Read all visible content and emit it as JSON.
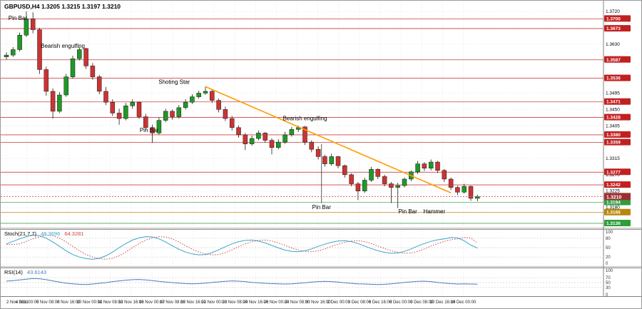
{
  "main_chart": {
    "ohlc_label": "GBPUSD,H4 1.3205 1.3215 1.3197 1.3210"
  },
  "chart_data": [
    {
      "type": "candlestick",
      "title": "GBPUSD,H4",
      "ylim": [
        1.313,
        1.3742
      ],
      "up_color": "#1f9927",
      "down_color": "#cc3333",
      "price_ticks": [
        "1.3720",
        "1.3675",
        "1.3630",
        "1.3585",
        "1.3540",
        "1.3495",
        "1.3450",
        "1.3405",
        "1.3360",
        "1.3315",
        "1.3270",
        "1.3225",
        "1.3180",
        "1.3135"
      ],
      "x_labels": [
        "2 Nov 2021",
        "4 Nov 00:00",
        "5 Nov 08:00",
        "8 Nov 16:00",
        "10 Nov 00:00",
        "11 Nov 08:00",
        "12 Nov 16:00",
        "16 Nov 00:00",
        "17 Nov 08:00",
        "18 Nov 16:00",
        "22 Nov 00:00",
        "23 Nov 08:00",
        "24 Nov 16:00",
        "26 Nov 00:00",
        "29 Nov 08:00",
        "30 Nov 16:00",
        "2 Dec 00:00",
        "3 Dec 08:00",
        "6 Dec 16:00",
        "8 Dec 00:00",
        "9 Dec 08:00",
        "10 Dec 16:00",
        "14 Dec 00:00"
      ],
      "ohlc": [
        [
          1.3595,
          1.3608,
          1.3588,
          1.36
        ],
        [
          1.36,
          1.3622,
          1.3595,
          1.3615
        ],
        [
          1.3615,
          1.3662,
          1.361,
          1.3655
        ],
        [
          1.3655,
          1.372,
          1.365,
          1.37
        ],
        [
          1.37,
          1.3718,
          1.366,
          1.367
        ],
        [
          1.367,
          1.3675,
          1.3548,
          1.356
        ],
        [
          1.356,
          1.3568,
          1.3488,
          1.35
        ],
        [
          1.35,
          1.3508,
          1.3425,
          1.3445
        ],
        [
          1.3445,
          1.3498,
          1.344,
          1.349
        ],
        [
          1.349,
          1.3548,
          1.3485,
          1.354
        ],
        [
          1.354,
          1.3598,
          1.3535,
          1.359
        ],
        [
          1.359,
          1.3622,
          1.3585,
          1.3615
        ],
        [
          1.3618,
          1.362,
          1.3562,
          1.357
        ],
        [
          1.357,
          1.3578,
          1.3532,
          1.354
        ],
        [
          1.354,
          1.3545,
          1.3492,
          1.35
        ],
        [
          1.35,
          1.3512,
          1.3462,
          1.347
        ],
        [
          1.347,
          1.3478,
          1.3432,
          1.344
        ],
        [
          1.344,
          1.3452,
          1.3408,
          1.3425
        ],
        [
          1.3425,
          1.3468,
          1.342,
          1.346
        ],
        [
          1.346,
          1.3478,
          1.3452,
          1.347
        ],
        [
          1.347,
          1.3472,
          1.3424,
          1.343
        ],
        [
          1.343,
          1.3438,
          1.3392,
          1.34
        ],
        [
          1.34,
          1.3408,
          1.3358,
          1.3385
        ],
        [
          1.3385,
          1.3428,
          1.338,
          1.342
        ],
        [
          1.342,
          1.3452,
          1.3415,
          1.3445
        ],
        [
          1.3445,
          1.345,
          1.3422,
          1.343
        ],
        [
          1.343,
          1.3462,
          1.3425,
          1.3455
        ],
        [
          1.3455,
          1.3478,
          1.345,
          1.347
        ],
        [
          1.347,
          1.3492,
          1.3465,
          1.3485
        ],
        [
          1.3485,
          1.3502,
          1.348,
          1.3495
        ],
        [
          1.3495,
          1.3513,
          1.349,
          1.35
        ],
        [
          1.35,
          1.3505,
          1.3468,
          1.3475
        ],
        [
          1.3475,
          1.348,
          1.3442,
          1.345
        ],
        [
          1.345,
          1.3458,
          1.3418,
          1.3425
        ],
        [
          1.3425,
          1.3432,
          1.3392,
          1.34
        ],
        [
          1.34,
          1.3406,
          1.3372,
          1.338
        ],
        [
          1.338,
          1.3385,
          1.3338,
          1.3355
        ],
        [
          1.3355,
          1.3378,
          1.335,
          1.337
        ],
        [
          1.337,
          1.3392,
          1.3365,
          1.3385
        ],
        [
          1.3385,
          1.3388,
          1.3358,
          1.3365
        ],
        [
          1.3365,
          1.337,
          1.3326,
          1.3345
        ],
        [
          1.3345,
          1.3368,
          1.334,
          1.336
        ],
        [
          1.336,
          1.3388,
          1.3355,
          1.338
        ],
        [
          1.338,
          1.3402,
          1.3375,
          1.3395
        ],
        [
          1.3395,
          1.3405,
          1.3388,
          1.34
        ],
        [
          1.3402,
          1.3404,
          1.3352,
          1.336
        ],
        [
          1.336,
          1.3365,
          1.3332,
          1.334
        ],
        [
          1.334,
          1.3348,
          1.3312,
          1.332
        ],
        [
          1.332,
          1.3325,
          1.3292,
          1.33
        ],
        [
          1.33,
          1.3328,
          1.3295,
          1.332
        ],
        [
          1.332,
          1.3322,
          1.3288,
          1.3295
        ],
        [
          1.3295,
          1.3298,
          1.3262,
          1.327
        ],
        [
          1.327,
          1.3274,
          1.3238,
          1.3245
        ],
        [
          1.3245,
          1.325,
          1.32,
          1.3225
        ],
        [
          1.3225,
          1.3262,
          1.322,
          1.3255
        ],
        [
          1.3255,
          1.3292,
          1.325,
          1.3285
        ],
        [
          1.3285,
          1.3288,
          1.3258,
          1.3265
        ],
        [
          1.3265,
          1.327,
          1.3238,
          1.3245
        ],
        [
          1.3245,
          1.325,
          1.3192,
          1.3235
        ],
        [
          1.3235,
          1.3248,
          1.3178,
          1.324
        ],
        [
          1.324,
          1.3262,
          1.3235,
          1.3258
        ],
        [
          1.3258,
          1.3282,
          1.3252,
          1.3278
        ],
        [
          1.3278,
          1.3308,
          1.3272,
          1.33
        ],
        [
          1.33,
          1.3305,
          1.328,
          1.3288
        ],
        [
          1.3288,
          1.3312,
          1.3282,
          1.3305
        ],
        [
          1.3305,
          1.3308,
          1.3275,
          1.3282
        ],
        [
          1.3282,
          1.3286,
          1.325,
          1.3258
        ],
        [
          1.3258,
          1.3262,
          1.3228,
          1.3235
        ],
        [
          1.3235,
          1.324,
          1.3214,
          1.3222
        ],
        [
          1.3222,
          1.3245,
          1.3218,
          1.3238
        ],
        [
          1.3238,
          1.324,
          1.3198,
          1.3205
        ],
        [
          1.3205,
          1.3215,
          1.3197,
          1.321
        ]
      ],
      "levels": [
        {
          "price": 1.37,
          "label": "1.3700",
          "color": "#c22020"
        },
        {
          "price": 1.3673,
          "label": "1.3673",
          "color": "#c22020"
        },
        {
          "price": 1.3587,
          "label": "1.3587",
          "color": "#c22020"
        },
        {
          "price": 1.3536,
          "label": "1.3536",
          "color": "#c22020"
        },
        {
          "price": 1.3471,
          "label": "1.3471",
          "color": "#c22020"
        },
        {
          "price": 1.3428,
          "label": "1.3428",
          "color": "#c22020"
        },
        {
          "price": 1.338,
          "label": "1.3380",
          "color": "#c22020"
        },
        {
          "price": 1.3359,
          "label": "1.3359",
          "color": "#c22020"
        },
        {
          "price": 1.3277,
          "label": "1.3277",
          "color": "#c22020"
        },
        {
          "price": 1.3242,
          "label": "1.3242",
          "color": "#c22020"
        },
        {
          "price": 1.3194,
          "label": "1.3194",
          "color": "#2e9e3a"
        },
        {
          "price": 1.3166,
          "label": "1.3166",
          "color": "#b8860b"
        },
        {
          "price": 1.3136,
          "label": "1.3136",
          "color": "#2e9e3a"
        }
      ],
      "bid_line": {
        "price": 1.321,
        "label": "1.3210",
        "color": "#9b3030"
      },
      "trendline": {
        "from_index": 30,
        "from_price": 1.3513,
        "to_index": 67,
        "to_price": 1.322,
        "color": "#ff9c00"
      },
      "vlines": [
        {
          "index": 47.5,
          "from_price": 1.3355,
          "to_price": 1.3192
        }
      ],
      "annotations": [
        {
          "text": "Pin Bar",
          "index": 0.3,
          "price": 1.3697,
          "anchor": "start"
        },
        {
          "text": "Bearish engulfing",
          "index": 8.5,
          "price": 1.362,
          "anchor": "middle"
        },
        {
          "text": "Shoting Star",
          "index": 25.3,
          "price": 1.3521,
          "anchor": "middle"
        },
        {
          "text": "Pin Bar",
          "index": 21.5,
          "price": 1.3388,
          "anchor": "middle"
        },
        {
          "text": "Bearish engulfing",
          "index": 45,
          "price": 1.342,
          "anchor": "middle"
        },
        {
          "text": "Pin Bar",
          "index": 47.5,
          "price": 1.3175,
          "anchor": "middle"
        },
        {
          "text": "Pin Bar",
          "index": 60.5,
          "price": 1.3163,
          "anchor": "middle"
        },
        {
          "text": "Hammer",
          "index": 64.5,
          "price": 1.3163,
          "anchor": "middle"
        }
      ]
    },
    {
      "type": "line",
      "name": "Stochastic Oscillator",
      "label": "Stoch(21,7,7)",
      "value_main": "48.3696",
      "value_signal": "64.3281",
      "ylim": [
        0,
        100
      ],
      "levels": [
        20,
        50,
        80
      ],
      "scale_labels": [
        "100",
        "80",
        "50",
        "20",
        "0"
      ],
      "series": [
        {
          "name": "stoch-main",
          "color": "#3aa6c9",
          "dashed": false,
          "values": [
            62,
            70,
            78,
            85,
            90,
            88,
            80,
            68,
            54,
            40,
            28,
            20,
            15,
            13,
            16,
            24,
            36,
            50,
            63,
            74,
            81,
            85,
            84,
            78,
            68,
            56,
            45,
            36,
            30,
            27,
            28,
            34,
            43,
            53,
            62,
            69,
            73,
            74,
            71,
            65,
            57,
            49,
            42,
            38,
            37,
            40,
            46,
            54,
            61,
            67,
            71,
            72,
            69,
            63,
            55,
            47,
            40,
            35,
            32,
            33,
            38,
            46,
            55,
            63,
            70,
            75,
            78,
            82,
            81,
            72,
            58,
            48.37
          ]
        },
        {
          "name": "stoch-signal",
          "color": "#cf4343",
          "dashed": true,
          "values": [
            60,
            60,
            62,
            70,
            78,
            85,
            90,
            88,
            80,
            68,
            54,
            40,
            28,
            20,
            15,
            13,
            16,
            24,
            36,
            50,
            63,
            74,
            81,
            85,
            84,
            78,
            68,
            56,
            45,
            36,
            30,
            27,
            28,
            34,
            43,
            53,
            62,
            69,
            73,
            74,
            71,
            65,
            57,
            49,
            42,
            38,
            37,
            40,
            46,
            54,
            61,
            67,
            71,
            72,
            69,
            63,
            55,
            47,
            40,
            35,
            32,
            33,
            38,
            46,
            55,
            63,
            70,
            75,
            78,
            82,
            81,
            64.33
          ]
        }
      ]
    },
    {
      "type": "line",
      "name": "Relative Strength Index",
      "label": "RSI(14)",
      "value": "43.6143",
      "ylim": [
        0,
        100
      ],
      "levels": [
        30,
        50,
        70
      ],
      "scale_labels": [
        "100",
        "70",
        "50",
        "30",
        "0"
      ],
      "series": [
        {
          "name": "rsi",
          "color": "#4a7ebb",
          "dashed": false,
          "values": [
            56,
            58,
            61,
            64,
            67,
            66,
            62,
            57,
            52,
            48,
            45,
            43,
            42,
            44,
            47,
            50,
            54,
            57,
            60,
            62,
            63,
            61,
            58,
            55,
            52,
            50,
            48,
            46,
            45,
            46,
            48,
            51,
            53,
            55,
            57,
            56,
            54,
            51,
            49,
            47,
            46,
            45,
            44,
            45,
            47,
            49,
            52,
            54,
            55,
            54,
            52,
            49,
            47,
            45,
            44,
            43,
            42,
            43,
            45,
            48,
            51,
            53,
            55,
            56,
            54,
            51,
            48,
            46,
            44,
            45,
            44,
            43.61
          ]
        }
      ]
    }
  ]
}
